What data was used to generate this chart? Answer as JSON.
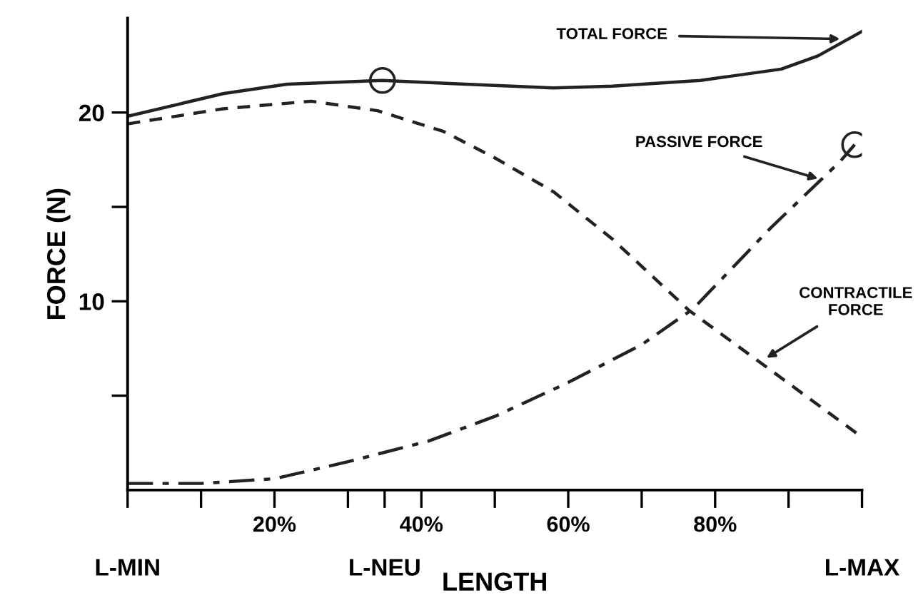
{
  "chart_data": {
    "type": "line",
    "xlabel": "LENGTH",
    "ylabel": "FORCE (N)",
    "xlim": [
      0,
      100
    ],
    "ylim": [
      0,
      25
    ],
    "xticks": [
      {
        "value": 0,
        "label": null
      },
      {
        "value": 10,
        "label": null
      },
      {
        "value": 20,
        "label": "20%"
      },
      {
        "value": 30,
        "label": null
      },
      {
        "value": 35,
        "label": null
      },
      {
        "value": 40,
        "label": "40%"
      },
      {
        "value": 50,
        "label": null
      },
      {
        "value": 60,
        "label": "60%"
      },
      {
        "value": 70,
        "label": null
      },
      {
        "value": 80,
        "label": "80%"
      },
      {
        "value": 90,
        "label": null
      },
      {
        "value": 100,
        "label": null
      }
    ],
    "yticks": [
      {
        "value": 5,
        "label": null
      },
      10,
      {
        "value": 15,
        "label": null
      },
      20
    ],
    "grid": false,
    "legend": false,
    "series": [
      {
        "line_style": "solid",
        "color": "#222222",
        "x": [
          0,
          13,
          21.7,
          34.7,
          46,
          58,
          66,
          78,
          89,
          94,
          100
        ],
        "values": [
          19.8,
          21.0,
          21.5,
          21.7,
          21.5,
          21.3,
          21.4,
          21.7,
          22.3,
          23.0,
          24.3
        ]
      },
      {
        "line_style": "dashed",
        "color": "#222222",
        "x": [
          0,
          13,
          25,
          34,
          43,
          50,
          58,
          66,
          76.5,
          86,
          100
        ],
        "values": [
          19.4,
          20.2,
          20.6,
          20.1,
          19.0,
          17.6,
          15.8,
          13.3,
          9.5,
          6.8,
          2.8
        ]
      },
      {
        "line_style": "dashdot",
        "color": "#222222",
        "x": [
          0,
          10,
          20,
          30,
          41,
          50,
          60,
          70,
          77,
          87.6,
          97,
          99
        ],
        "values": [
          0.35,
          0.35,
          0.6,
          1.5,
          2.6,
          3.9,
          5.7,
          7.7,
          9.6,
          13.9,
          17.4,
          18.3
        ]
      },
      {
        "type": "scatter",
        "marker": "circle",
        "color": "#222222",
        "x": [
          34.7,
          99
        ],
        "values": [
          21.7,
          18.3
        ]
      }
    ],
    "annotations": [
      {
        "text": "TOTAL FORCE",
        "x": 97,
        "y": 23.9
      },
      {
        "text": "PASSIVE FORCE",
        "x": 94,
        "y": 16.5
      },
      {
        "text": "CONTRACTILE\nFORCE",
        "x": 87,
        "y": 7.0
      },
      "L-MIN",
      "L-NEU",
      "L-MAX"
    ]
  }
}
